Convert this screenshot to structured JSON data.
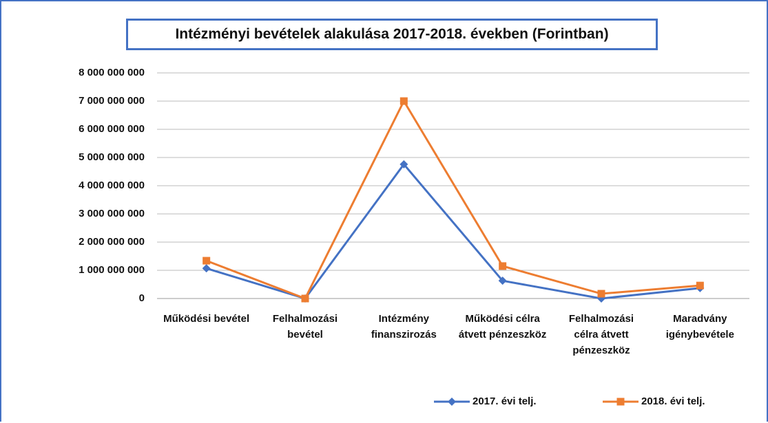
{
  "chart_data": {
    "type": "line",
    "title": "Intézményi bevételek alakulása 2017-2018. években (Forintban)",
    "categories": [
      "Működési bevétel",
      "Felhalmozási bevétel",
      "Intézmény finanszirozás",
      "Működési célra átvett pénzeszköz",
      "Felhalmozási célra átvett pénzeszköz",
      "Maradvány igénybevétele"
    ],
    "series": [
      {
        "name": "2017. évi telj.",
        "color": "#4472c4",
        "marker": "diamond",
        "values": [
          1070000000,
          0,
          4760000000,
          630000000,
          0,
          370000000
        ]
      },
      {
        "name": "2018. évi telj.",
        "color": "#ed7d31",
        "marker": "square",
        "values": [
          1340000000,
          0,
          7000000000,
          1150000000,
          170000000,
          460000000
        ]
      }
    ],
    "ylim": [
      0,
      8000000000
    ],
    "yticks": [
      0,
      {
        "value": 1000000000,
        "label": "1 000 000 000"
      },
      {
        "value": 2000000000,
        "label": "2 000 000 000"
      },
      {
        "value": 3000000000,
        "label": "3 000 000 000"
      },
      {
        "value": 4000000000,
        "label": "4 000 000 000"
      },
      {
        "value": 5000000000,
        "label": "5 000 000 000"
      },
      {
        "value": 6000000000,
        "label": "6 000 000 000"
      },
      {
        "value": 7000000000,
        "label": "7 000 000 000"
      },
      {
        "value": 8000000000,
        "label": "8 000 000 000"
      }
    ],
    "grid": true,
    "legend": "bottom"
  }
}
